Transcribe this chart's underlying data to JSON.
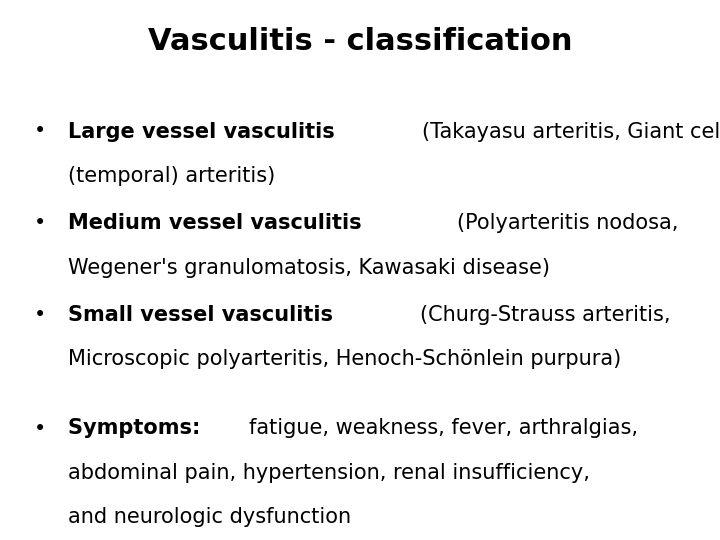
{
  "title": "Vasculitis - classification",
  "title_fontsize": 22,
  "background_color": "#ffffff",
  "text_color": "#000000",
  "body_fontsize": 15,
  "bullet_char": "•",
  "bullets": [
    {
      "bold_part": "Large vessel vasculitis ",
      "normal_part": "(Takayasu arteritis, Giant cell\n(temporal) arteritis)"
    },
    {
      "bold_part": "Medium vessel vasculitis ",
      "normal_part": "(Polyarteritis nodosa,\nWegener's granulomatosis, Kawasaki disease)"
    },
    {
      "bold_part": "Small vessel vasculitis ",
      "normal_part": "(Churg-Strauss arteritis,\nMicroscopic polyarteritis, Henoch-Schönlein purpura)"
    },
    {
      "bold_part": "Symptoms: ",
      "normal_part": "fatigue, weakness, fever, arthralgias,\nabdominal pain, hypertension, renal insufficiency,\nand neurologic dysfunction"
    }
  ]
}
